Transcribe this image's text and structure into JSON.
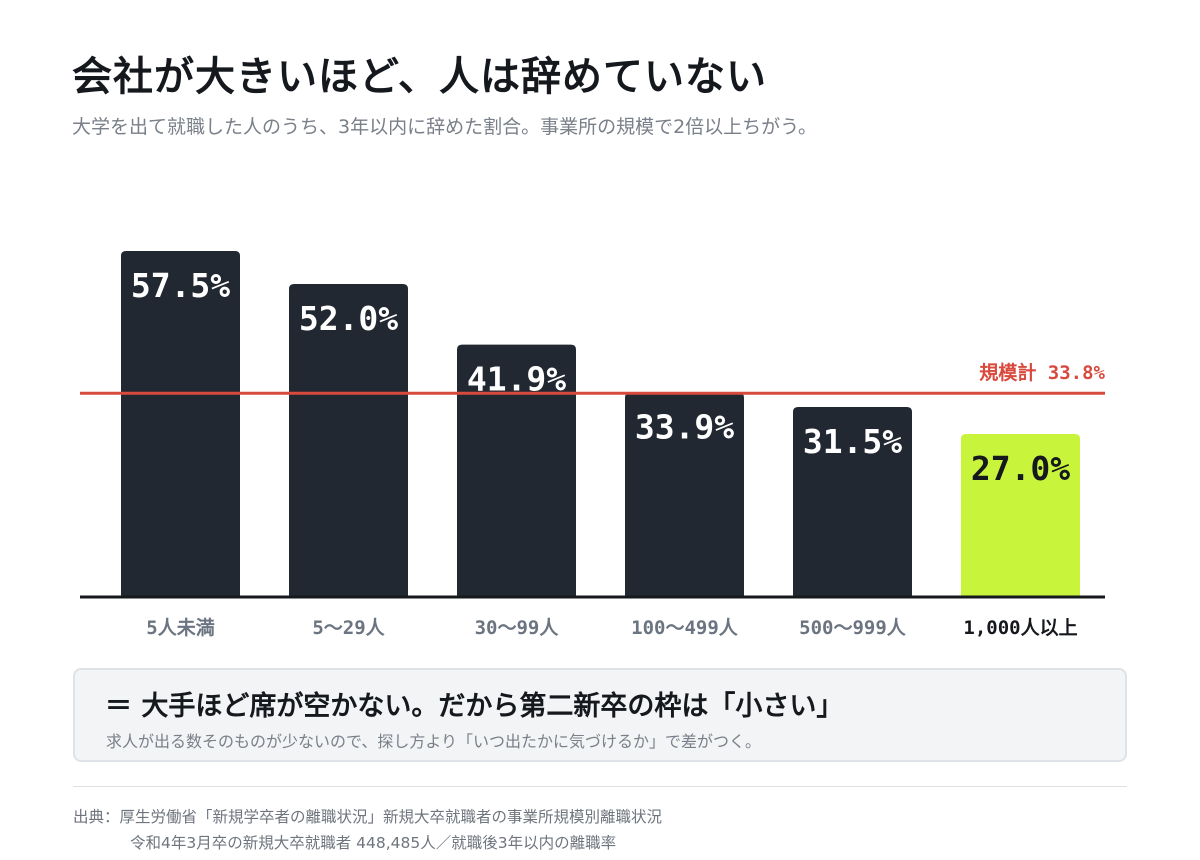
{
  "header": {
    "title": "会社が大きいほど、人は辞めていない",
    "subtitle": "大学を出て就職した人のうち、3年以内に辞めた割合。事業所の規模で2倍以上ちがう。"
  },
  "chart_data": {
    "type": "bar",
    "categories": [
      "5人未満",
      "5〜29人",
      "30〜99人",
      "100〜499人",
      "500〜999人",
      "1,000人以上"
    ],
    "values": [
      57.5,
      52.0,
      41.9,
      33.9,
      31.5,
      27.0
    ],
    "value_labels": [
      "57.5%",
      "52.0%",
      "41.9%",
      "33.9%",
      "31.5%",
      "27.0%"
    ],
    "ylim": [
      0,
      60
    ],
    "grid": false,
    "highlight_index": 5,
    "reference_line": {
      "value": 33.8,
      "label": "規模計 33.8%"
    },
    "colors": {
      "bar": "#222831",
      "highlight_bar": "#c8f53c",
      "bar_text": "#ffffff",
      "highlight_text": "#15181d",
      "reference": "#d94a3e",
      "category_text": "#6b7480",
      "highlight_category_text": "#15181d",
      "axis": "#15181d"
    }
  },
  "callout": {
    "headline": "＝ 大手ほど席が空かない。だから第二新卒の枠は「小さい」",
    "body": "求人が出る数そのものが少ないので、探し方より「いつ出たかに気づけるか」で差がつく。"
  },
  "source": {
    "line1": "出典：厚生労働省「新規学卒者の離職状況」新規大卒就職者の事業所規模別離職状況",
    "line2": "令和4年3月卒の新規大卒就職者 448,485人／就職後3年以内の離職率"
  }
}
